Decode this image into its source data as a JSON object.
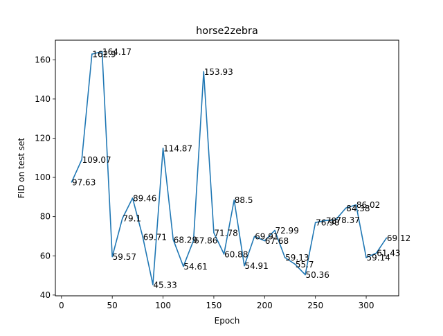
{
  "chart_data": {
    "type": "line",
    "title": "horse2zebra",
    "xlabel": "Epoch",
    "ylabel": "FID on test set",
    "xlim": [
      -6,
      332
    ],
    "ylim": [
      39.6,
      170.0
    ],
    "xticks": [
      0,
      50,
      100,
      150,
      200,
      250,
      300
    ],
    "yticks": [
      40,
      60,
      80,
      100,
      120,
      140,
      160
    ],
    "grid": false,
    "line_color": "#1f77b4",
    "series": [
      {
        "x": [
          10,
          20,
          30,
          40,
          50,
          60,
          70,
          80,
          90,
          100,
          110,
          120,
          130,
          140,
          150,
          160,
          170,
          180,
          190,
          200,
          210,
          220,
          230,
          240,
          250,
          260,
          270,
          280,
          290,
          300,
          310,
          320
        ],
        "values": [
          97.63,
          109.07,
          162.9,
          164.17,
          59.57,
          79.1,
          89.46,
          69.71,
          45.33,
          114.87,
          68.29,
          54.61,
          67.86,
          153.93,
          71.78,
          60.88,
          88.5,
          54.91,
          69.91,
          67.68,
          72.99,
          59.13,
          55.7,
          50.36,
          76.98,
          78.0,
          78.37,
          84.38,
          86.02,
          59.14,
          61.43,
          69.12
        ],
        "labels": [
          "97.63",
          "109.07",
          "162.9",
          "164.17",
          "59.57",
          "79.1",
          "89.46",
          "69.71",
          "45.33",
          "114.87",
          "68.29",
          "54.61",
          "67.86",
          "153.93",
          "71.78",
          "60.88",
          "88.5",
          "54.91",
          "69.91",
          "67.68",
          "72.99",
          "59.13",
          "55.7",
          "50.36",
          "76.98",
          "78",
          "78.37",
          "84.38",
          "86.02",
          "59.14",
          "61.43",
          "69.12"
        ]
      }
    ]
  }
}
